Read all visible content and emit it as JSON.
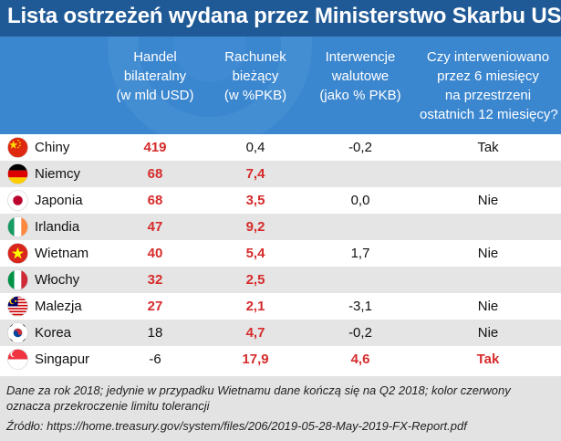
{
  "title": "Lista ostrzeżeń wydana przez Ministerstwo Skarbu USA",
  "colors": {
    "title_bg": "#1f5a96",
    "header_bg": "#3a86cf",
    "highlight": "#d62b2b",
    "row_alt": "#e5e5e5"
  },
  "headers": {
    "col1": [
      "Handel",
      "bilateralny",
      "(w mld USD)"
    ],
    "col2": [
      "Rachunek",
      "bieżący",
      "(w %PKB)"
    ],
    "col3": [
      "Interwencje",
      "walutowe",
      "(jako % PKB)"
    ],
    "col4": [
      "Czy interweniowano",
      "przez 6 miesięcy",
      "na przestrzeni",
      "ostatnich 12 miesięcy?"
    ]
  },
  "chart_data": {
    "type": "table",
    "title": "Lista ostrzeżeń wydana przez Ministerstwo Skarbu USA",
    "columns": [
      "Handel bilateralny (w mld USD)",
      "Rachunek bieżący (w %PKB)",
      "Interwencje walutowe (jako % PKB)",
      "Czy interweniowano przez 6 miesięcy na przestrzeni ostatnich 12 miesięcy?"
    ],
    "rows": [
      {
        "country": "Chiny",
        "flag": "china-flag",
        "trade": "419",
        "trade_red": true,
        "current": "0,4",
        "current_red": false,
        "interv": "-0,2",
        "interv_red": false,
        "intervened": "Tak",
        "intervened_red": false
      },
      {
        "country": "Niemcy",
        "flag": "germany-flag",
        "trade": "68",
        "trade_red": true,
        "current": "7,4",
        "current_red": true,
        "interv": "",
        "interv_red": false,
        "intervened": "",
        "intervened_red": false
      },
      {
        "country": "Japonia",
        "flag": "japan-flag",
        "trade": "68",
        "trade_red": true,
        "current": "3,5",
        "current_red": true,
        "interv": "0,0",
        "interv_red": false,
        "intervened": "Nie",
        "intervened_red": false
      },
      {
        "country": "Irlandia",
        "flag": "ireland-flag",
        "trade": "47",
        "trade_red": true,
        "current": "9,2",
        "current_red": true,
        "interv": "",
        "interv_red": false,
        "intervened": "",
        "intervened_red": false
      },
      {
        "country": "Wietnam",
        "flag": "vietnam-flag",
        "trade": "40",
        "trade_red": true,
        "current": "5,4",
        "current_red": true,
        "interv": "1,7",
        "interv_red": false,
        "intervened": "Nie",
        "intervened_red": false
      },
      {
        "country": "Włochy",
        "flag": "italy-flag",
        "trade": "32",
        "trade_red": true,
        "current": "2,5",
        "current_red": true,
        "interv": "",
        "interv_red": false,
        "intervened": "",
        "intervened_red": false
      },
      {
        "country": "Malezja",
        "flag": "malaysia-flag",
        "trade": "27",
        "trade_red": true,
        "current": "2,1",
        "current_red": true,
        "interv": "-3,1",
        "interv_red": false,
        "intervened": "Nie",
        "intervened_red": false
      },
      {
        "country": "Korea",
        "flag": "korea-flag",
        "trade": "18",
        "trade_red": false,
        "current": "4,7",
        "current_red": true,
        "interv": "-0,2",
        "interv_red": false,
        "intervened": "Nie",
        "intervened_red": false
      },
      {
        "country": "Singapur",
        "flag": "singapore-flag",
        "trade": "-6",
        "trade_red": false,
        "current": "17,9",
        "current_red": true,
        "interv": "4,6",
        "interv_red": true,
        "intervened": "Tak",
        "intervened_red": true
      }
    ]
  },
  "footer": {
    "note": "Dane za rok 2018; jedynie w przypadku Wietnamu dane kończą się na Q2 2018;  kolor czerwony oznacza przekroczenie limitu tolerancji",
    "source": "Źródło: https://home.treasury.gov/system/files/206/2019-05-28-May-2019-FX-Report.pdf"
  }
}
